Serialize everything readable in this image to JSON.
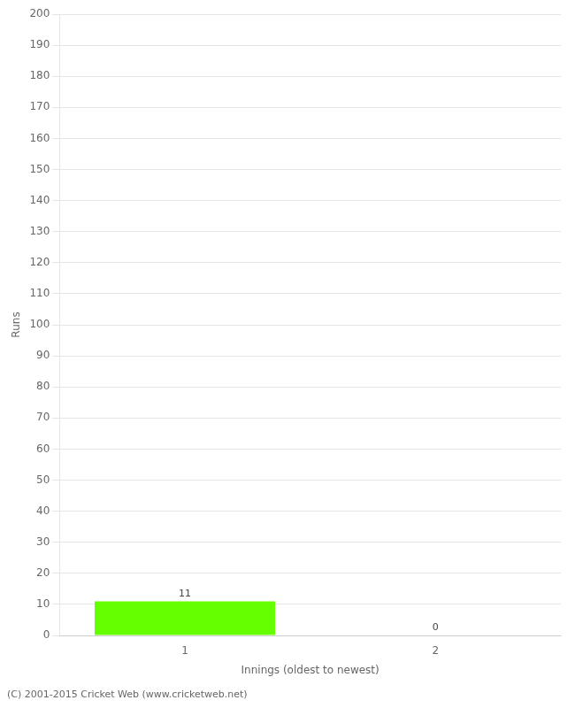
{
  "chart_data": {
    "type": "bar",
    "xlabel": "Innings (oldest to newest)",
    "ylabel": "Runs",
    "categories": [
      "1",
      "2"
    ],
    "values": [
      11,
      0
    ],
    "color": "#66ff00",
    "ylim": [
      0,
      200
    ],
    "yticks": [
      0,
      10,
      20,
      30,
      40,
      50,
      60,
      70,
      80,
      90,
      100,
      110,
      120,
      130,
      140,
      150,
      160,
      170,
      180,
      190,
      200
    ],
    "grid": true,
    "legend": false,
    "data_labels": true,
    "annotations": [
      "(C) 2001-2015 Cricket Web (www.cricketweb.net)"
    ]
  }
}
